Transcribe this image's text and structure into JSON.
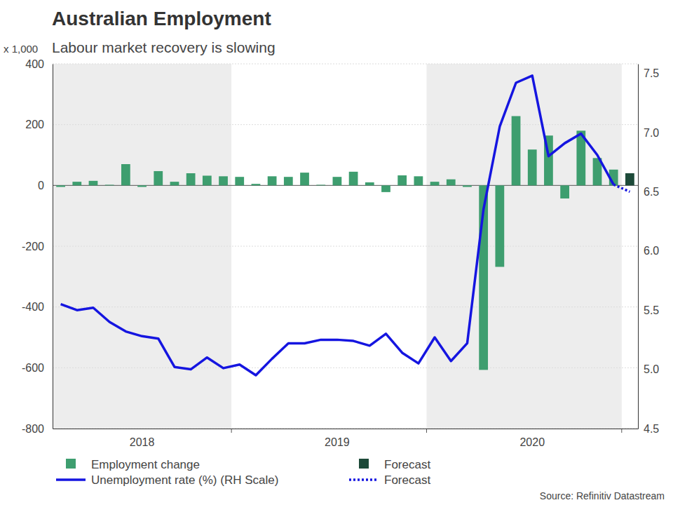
{
  "chart_data": {
    "type": "bar",
    "title": "Australian Employment",
    "subtitle": "Labour market recovery is slowing",
    "ylabel": "x 1,000",
    "source": "Source: Refinitiv Datastream",
    "categories": [
      null,
      null,
      null,
      null,
      null,
      "2018",
      null,
      null,
      null,
      null,
      null,
      null,
      null,
      null,
      null,
      null,
      null,
      "2019",
      null,
      null,
      null,
      null,
      null,
      null,
      null,
      null,
      null,
      null,
      null,
      "2020",
      null,
      null,
      null,
      null,
      null,
      null
    ],
    "series": [
      {
        "name": "Employment change",
        "type": "bar",
        "color": "#3e9e6f",
        "values": [
          -5,
          12,
          15,
          2,
          70,
          -5,
          47,
          12,
          40,
          32,
          30,
          28,
          5,
          30,
          28,
          42,
          2,
          28,
          45,
          10,
          -22,
          33,
          30,
          12,
          20,
          -5,
          -607,
          -268,
          228,
          118,
          164,
          -43,
          180,
          90,
          52,
          null
        ]
      },
      {
        "name": "Forecast",
        "type": "bar",
        "color": "#1d4a39",
        "values": [
          null,
          null,
          null,
          null,
          null,
          null,
          null,
          null,
          null,
          null,
          null,
          null,
          null,
          null,
          null,
          null,
          null,
          null,
          null,
          null,
          null,
          null,
          null,
          null,
          null,
          null,
          null,
          null,
          null,
          null,
          null,
          null,
          null,
          null,
          null,
          40
        ]
      },
      {
        "name": "Unemployment rate (%) (RH Scale)",
        "type": "line",
        "axis": "y2",
        "color": "#1515e0",
        "line_style": "solid",
        "values": [
          5.55,
          5.5,
          5.52,
          5.4,
          5.32,
          5.28,
          5.26,
          5.02,
          5.0,
          5.1,
          5.01,
          5.04,
          4.95,
          5.09,
          5.22,
          5.22,
          5.25,
          5.25,
          5.24,
          5.2,
          5.3,
          5.14,
          5.05,
          5.27,
          5.07,
          5.22,
          6.35,
          7.05,
          7.42,
          7.48,
          6.8,
          6.91,
          6.99,
          6.81,
          6.56,
          null
        ]
      },
      {
        "name": "Forecast",
        "type": "line",
        "axis": "y2",
        "color": "#1515e0",
        "line_style": "dotted",
        "values": [
          null,
          null,
          null,
          null,
          null,
          null,
          null,
          null,
          null,
          null,
          null,
          null,
          null,
          null,
          null,
          null,
          null,
          null,
          null,
          null,
          null,
          null,
          null,
          null,
          null,
          null,
          null,
          null,
          null,
          null,
          null,
          null,
          null,
          null,
          6.56,
          6.5
        ]
      }
    ],
    "ylim": [
      -800,
      400
    ],
    "yticks": [
      -800,
      -600,
      -400,
      -200,
      0,
      200,
      400
    ],
    "y2lim": [
      4.5,
      7.58
    ],
    "y2ticks": [
      4.5,
      {
        "value": 5,
        "label": "5.0"
      },
      5.5,
      {
        "value": 6,
        "label": "6.0"
      },
      6.5,
      {
        "value": 7,
        "label": "7.0"
      },
      7.5
    ],
    "grid": true,
    "legend": "bottom"
  }
}
